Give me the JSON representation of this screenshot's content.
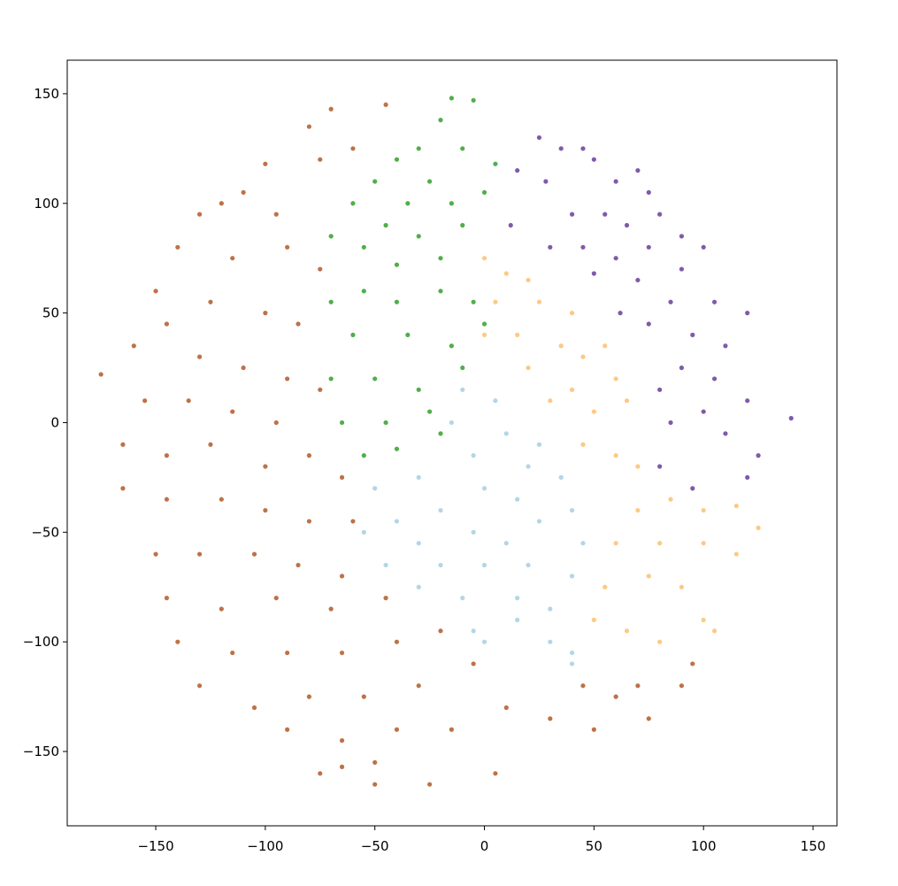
{
  "chart_data": {
    "type": "scatter",
    "xlim": [
      -190.4,
      160.9
    ],
    "ylim": [
      -183.9,
      165.3
    ],
    "xticks": [
      {
        "value": -150,
        "label": "−150"
      },
      {
        "value": -100,
        "label": "−100"
      },
      {
        "value": -50,
        "label": "−50"
      },
      0,
      50,
      100,
      150
    ],
    "yticks": [
      {
        "value": -150,
        "label": "−150"
      },
      {
        "value": -100,
        "label": "−100"
      },
      {
        "value": -50,
        "label": "−50"
      },
      0,
      50,
      100,
      150
    ],
    "series": [
      {
        "color": "#b15928",
        "x": [
          -45,
          -70,
          -80,
          -60,
          -75,
          -100,
          -110,
          -95,
          -120,
          -130,
          -140,
          -115,
          -90,
          -75,
          -150,
          -125,
          -100,
          -85,
          -145,
          -160,
          -175,
          -130,
          -110,
          -90,
          -75,
          -155,
          -135,
          -115,
          -95,
          -165,
          -145,
          -125,
          -100,
          -80,
          -65,
          -165,
          -145,
          -120,
          -100,
          -80,
          -60,
          -150,
          -130,
          -105,
          -85,
          -65,
          -145,
          -120,
          -95,
          -70,
          -45,
          -140,
          -115,
          -90,
          -65,
          -40,
          -20,
          -130,
          -105,
          -80,
          -55,
          -30,
          -5,
          -90,
          -65,
          -40,
          -15,
          -75,
          -50,
          -25,
          5,
          10,
          30,
          45,
          60,
          50,
          70,
          90,
          75,
          95,
          -50,
          -65
        ],
        "y": [
          145,
          143,
          135,
          125,
          120,
          118,
          105,
          95,
          100,
          95,
          80,
          75,
          80,
          70,
          60,
          55,
          50,
          45,
          45,
          35,
          22,
          30,
          25,
          20,
          15,
          10,
          10,
          5,
          0,
          -10,
          -15,
          -10,
          -20,
          -15,
          -25,
          -30,
          -35,
          -35,
          -40,
          -45,
          -45,
          -60,
          -60,
          -60,
          -65,
          -70,
          -80,
          -85,
          -80,
          -85,
          -80,
          -100,
          -105,
          -105,
          -105,
          -100,
          -95,
          -120,
          -130,
          -125,
          -125,
          -120,
          -110,
          -140,
          -145,
          -140,
          -140,
          -160,
          -155,
          -165,
          -160,
          -130,
          -135,
          -120,
          -125,
          -140,
          -120,
          -120,
          -135,
          -110,
          -165,
          -157
        ]
      },
      {
        "color": "#33a02c",
        "x": [
          -15,
          -5,
          -20,
          -30,
          -40,
          -10,
          5,
          -25,
          -50,
          -60,
          -35,
          -15,
          0,
          -45,
          -70,
          -55,
          -30,
          -10,
          -40,
          -20,
          -55,
          -70,
          -40,
          -20,
          -5,
          -60,
          -35,
          -15,
          0,
          -70,
          -50,
          -30,
          -10,
          -65,
          -45,
          -25,
          -55,
          -40,
          -20
        ],
        "y": [
          148,
          147,
          138,
          125,
          120,
          125,
          118,
          110,
          110,
          100,
          100,
          100,
          105,
          90,
          85,
          80,
          85,
          90,
          72,
          75,
          60,
          55,
          55,
          60,
          55,
          40,
          40,
          35,
          45,
          20,
          20,
          15,
          25,
          0,
          0,
          5,
          -15,
          -12,
          -5
        ]
      },
      {
        "color": "#6a3d9a",
        "x": [
          25,
          35,
          45,
          50,
          15,
          28,
          60,
          70,
          75,
          12,
          40,
          55,
          65,
          80,
          90,
          30,
          45,
          60,
          75,
          100,
          50,
          70,
          90,
          62,
          75,
          85,
          105,
          120,
          95,
          110,
          90,
          105,
          80,
          100,
          120,
          140,
          85,
          110,
          125,
          80,
          95,
          120
        ],
        "y": [
          130,
          125,
          125,
          120,
          115,
          110,
          110,
          115,
          105,
          90,
          95,
          95,
          90,
          95,
          85,
          80,
          80,
          75,
          80,
          80,
          68,
          65,
          70,
          50,
          45,
          55,
          55,
          50,
          40,
          35,
          25,
          20,
          15,
          5,
          10,
          2,
          0,
          -5,
          -15,
          -20,
          -30,
          -25
        ]
      },
      {
        "color": "#fdbf6f",
        "x": [
          0,
          10,
          20,
          5,
          25,
          40,
          0,
          15,
          35,
          45,
          55,
          20,
          40,
          60,
          30,
          50,
          65,
          45,
          60,
          70,
          70,
          85,
          100,
          115,
          125,
          60,
          80,
          100,
          115,
          55,
          75,
          90,
          50,
          65,
          80,
          100,
          105
        ],
        "y": [
          75,
          68,
          65,
          55,
          55,
          50,
          40,
          40,
          35,
          30,
          35,
          25,
          15,
          20,
          10,
          5,
          10,
          -10,
          -15,
          -20,
          -40,
          -35,
          -40,
          -38,
          -48,
          -55,
          -55,
          -55,
          -60,
          -75,
          -70,
          -75,
          -90,
          -95,
          -100,
          -90,
          -95
        ]
      },
      {
        "color": "#a6cee3",
        "x": [
          -10,
          5,
          -15,
          10,
          25,
          -5,
          20,
          35,
          -30,
          -50,
          0,
          15,
          40,
          -20,
          -40,
          25,
          -55,
          -30,
          -5,
          10,
          45,
          -45,
          -20,
          0,
          20,
          40,
          -30,
          -10,
          15,
          30,
          -5,
          15,
          30,
          40,
          0,
          40
        ],
        "y": [
          15,
          10,
          0,
          -5,
          -10,
          -15,
          -20,
          -25,
          -25,
          -30,
          -30,
          -35,
          -40,
          -40,
          -45,
          -45,
          -50,
          -55,
          -50,
          -55,
          -55,
          -65,
          -65,
          -65,
          -65,
          -70,
          -75,
          -80,
          -80,
          -85,
          -95,
          -90,
          -100,
          -105,
          -100,
          -110
        ]
      }
    ]
  }
}
